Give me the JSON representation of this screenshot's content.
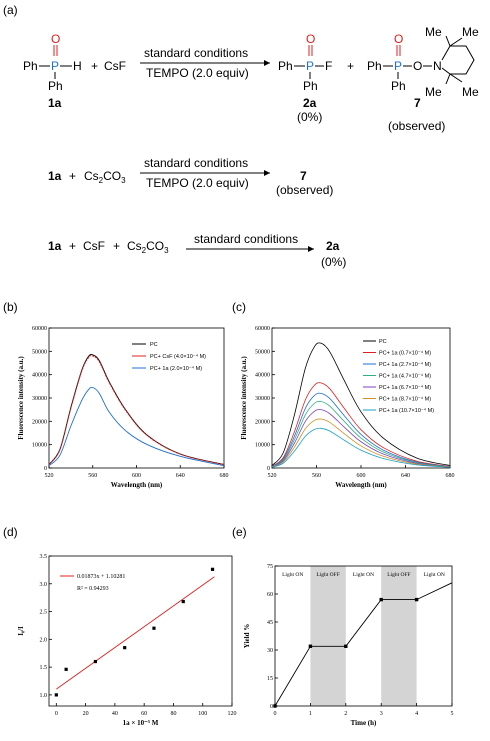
{
  "panels": {
    "a": "(a)",
    "b": "(b)",
    "c": "(c)",
    "d": "(d)",
    "e": "(e)"
  },
  "scheme": {
    "row1": {
      "ph1": "Ph",
      "ph2": "Ph",
      "ph3": "Ph",
      "ph4": "Ph",
      "ph5": "Ph",
      "ph6": "Ph",
      "P1": "P",
      "P2": "P",
      "P3": "P",
      "O1": "O",
      "O2": "O",
      "O3": "O",
      "H": "H",
      "F": "F",
      "N": "N",
      "plus1": "+",
      "plus2": "+",
      "csf": "CsF",
      "cond": "standard conditions",
      "tempo": "TEMPO (2.0 equiv)",
      "lbl1a": "1a",
      "lbl2a": "2a",
      "pct2a": "(0%)",
      "lbl7": "7",
      "obs7": "(observed)",
      "me1": "Me",
      "me2": "Me",
      "me3": "Me",
      "me4": "Me"
    },
    "row2": {
      "r": "1a",
      "plus": "+",
      "cs": "Cs",
      "sub2": "2",
      "co": "CO",
      "sub3": "3",
      "cond": "standard conditions",
      "tempo": "TEMPO (2.0 equiv)",
      "prod": "7",
      "obs": "(observed)"
    },
    "row3": {
      "r": "1a",
      "plus1": "+",
      "csf": "CsF",
      "plus2": "+",
      "cs": "Cs",
      "sub2": "2",
      "co": "CO",
      "sub3": "3",
      "cond": "standard conditions",
      "prod": "2a",
      "pct": "(0%)"
    }
  },
  "chart_data": [
    {
      "id": "b",
      "type": "line",
      "xlabel": "Wavelength (nm)",
      "ylabel": "Fluorescence intensity (a.u.)",
      "xlim": [
        520,
        680
      ],
      "ylim": [
        0,
        60000
      ],
      "xticks": [
        "520",
        "560",
        "600",
        "640",
        "680"
      ],
      "yticks": [
        "0",
        "10000",
        "20000",
        "30000",
        "40000",
        "50000",
        "60000"
      ],
      "legend": [
        "PC",
        "PC+ CsF (4.0×10⁻⁴ M)",
        "PC+ 1a (2.0×10⁻⁴ M)"
      ],
      "colors": [
        "#000000",
        "#e02020",
        "#1f6fd0"
      ],
      "series": [
        {
          "name": "PC",
          "x": [
            520,
            530,
            540,
            550,
            556,
            560,
            566,
            575,
            590,
            610,
            640,
            680
          ],
          "y": [
            1500,
            8000,
            26000,
            42000,
            47800,
            48500,
            46000,
            37000,
            25000,
            14000,
            6000,
            1500
          ]
        },
        {
          "name": "PC+ CsF (4.0×10⁻⁴ M)",
          "x": [
            520,
            530,
            540,
            550,
            556,
            560,
            566,
            575,
            590,
            610,
            640,
            680
          ],
          "y": [
            1400,
            7800,
            25500,
            41500,
            47200,
            48000,
            45500,
            36600,
            24700,
            13800,
            5900,
            1400
          ]
        },
        {
          "name": "PC+ 1a (2.0×10⁻⁴ M)",
          "x": [
            520,
            530,
            540,
            550,
            556,
            560,
            566,
            575,
            590,
            610,
            640,
            680
          ],
          "y": [
            1000,
            5500,
            18000,
            29000,
            33500,
            34500,
            32000,
            24000,
            16000,
            10000,
            5000,
            1000
          ]
        }
      ]
    },
    {
      "id": "c",
      "type": "line",
      "xlabel": "Wavelength (nm)",
      "ylabel": "Fluorescence intensity (a.u.)",
      "xlim": [
        520,
        680
      ],
      "ylim": [
        0,
        60000
      ],
      "xticks": [
        "520",
        "560",
        "600",
        "640",
        "680"
      ],
      "yticks": [
        "0",
        "10000",
        "20000",
        "30000",
        "40000",
        "50000",
        "60000"
      ],
      "legend": [
        "PC",
        "PC+ 1a (0.7×10⁻⁴ M)",
        "PC+ 1a (2.7×10⁻⁴ M)",
        "PC+ 1a (4.7×10⁻⁴ M)",
        "PC+ 1a (6.7×10⁻⁴ M)",
        "PC+ 1a (8.7×10⁻⁴ M)",
        "PC+ 1a (10.7×10⁻⁴ M)"
      ],
      "colors": [
        "#000000",
        "#e02020",
        "#1f6fd0",
        "#2fb080",
        "#8040c0",
        "#d09020",
        "#18a0c8"
      ],
      "peaks": [
        53500,
        36500,
        32000,
        28500,
        25000,
        21000,
        17000
      ],
      "x": [
        520,
        530,
        540,
        550,
        558,
        564,
        572,
        585,
        600,
        620,
        650,
        680
      ],
      "shape": [
        0.02,
        0.12,
        0.42,
        0.8,
        0.97,
        1.0,
        0.93,
        0.7,
        0.45,
        0.24,
        0.08,
        0.02
      ]
    },
    {
      "id": "d",
      "type": "scatter",
      "xlabel": "1a × 10⁻⁵ M",
      "ylabel": "I₀/I",
      "xlim": [
        -5,
        120
      ],
      "ylim": [
        0.8,
        3.5
      ],
      "xticks": [
        "0",
        "20",
        "40",
        "60",
        "80",
        "100",
        "120"
      ],
      "yticks": [
        "1.0",
        "1.5",
        "2.0",
        "2.5",
        "3.0",
        "3.5"
      ],
      "points": {
        "x": [
          0,
          6.7,
          26.7,
          46.7,
          66.7,
          86.7,
          106.7
        ],
        "y": [
          1.0,
          1.46,
          1.6,
          1.85,
          2.2,
          2.68,
          3.26
        ]
      },
      "fit": {
        "slope": 0.01873,
        "intercept": 1.10281,
        "color": "#e02020"
      },
      "legend_eq": "0.01873x + 1.10281",
      "legend_r2": "R² = 0.94293"
    },
    {
      "id": "e",
      "type": "line",
      "xlabel": "Time (h)",
      "ylabel": "Yield %",
      "xlim": [
        0,
        5
      ],
      "ylim": [
        0,
        75
      ],
      "xticks": [
        "0",
        "1",
        "2",
        "3",
        "4",
        "5"
      ],
      "yticks": [
        "0",
        "15",
        "30",
        "45",
        "60",
        "75"
      ],
      "x": [
        0,
        1,
        2,
        3,
        4,
        5
      ],
      "y": [
        0,
        32,
        32,
        57,
        57,
        66
      ],
      "bands": [
        [
          1,
          2
        ],
        [
          3,
          4
        ]
      ],
      "band_labels": [
        "Light ON",
        "Light OFF",
        "Light ON",
        "Light OFF",
        "Light ON"
      ]
    }
  ]
}
